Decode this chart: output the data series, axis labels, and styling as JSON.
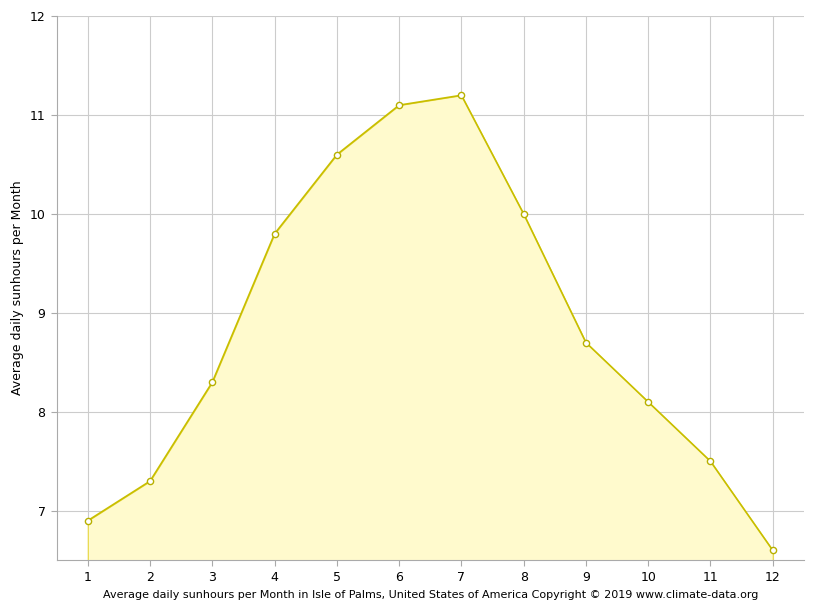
{
  "months": [
    1,
    2,
    3,
    4,
    5,
    6,
    7,
    8,
    9,
    10,
    11,
    12
  ],
  "sunhours": [
    6.9,
    7.3,
    8.3,
    9.8,
    10.6,
    11.1,
    11.2,
    10.0,
    8.7,
    8.1,
    7.5,
    6.6
  ],
  "fill_color": "#FFFACD",
  "fill_edge_color": "#E8D840",
  "line_color": "#C8BE00",
  "marker_facecolor": "#FFFFFF",
  "marker_edgecolor": "#B8B000",
  "ylabel": "Average daily sunhours per Month",
  "xlabel": "Average daily sunhours per Month in Isle of Palms, United States of America Copyright © 2019 www.climate-data.org",
  "ylim_min": 6.5,
  "ylim_max": 12.0,
  "xlim_min": 0.5,
  "xlim_max": 12.5,
  "yticks": [
    7,
    8,
    9,
    10,
    11,
    12
  ],
  "xticks": [
    1,
    2,
    3,
    4,
    5,
    6,
    7,
    8,
    9,
    10,
    11,
    12
  ],
  "grid_color": "#cccccc",
  "background_color": "#ffffff",
  "ylabel_fontsize": 9,
  "xlabel_fontsize": 8,
  "tick_fontsize": 9,
  "marker_size": 20,
  "linewidth": 1.2
}
